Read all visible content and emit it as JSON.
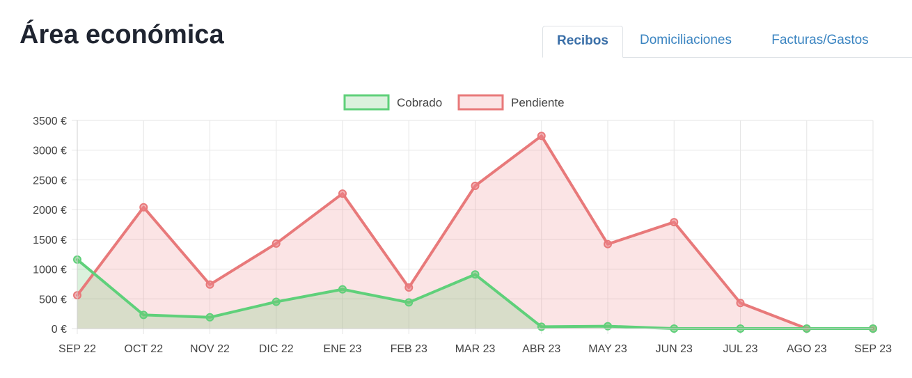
{
  "page": {
    "title": "Área económica"
  },
  "tabs": [
    {
      "label": "Recibos",
      "active": true
    },
    {
      "label": "Domiciliaciones",
      "active": false
    },
    {
      "label": "Facturas/Gastos",
      "active": false
    }
  ],
  "colors": {
    "cobrado_line": "#5fd07a",
    "cobrado_fill": "rgba(110,200,120,0.25)",
    "pendiente_line": "#e8797a",
    "pendiente_fill": "rgba(235,130,135,0.22)",
    "grid": "#e6e6e6",
    "tick_text": "#444444",
    "active_tab": "#3a6fa8",
    "tab_link": "#3a84c1"
  },
  "chart_data": {
    "type": "line",
    "x": [
      "SEP 22",
      "OCT 22",
      "NOV 22",
      "DIC 22",
      "ENE 23",
      "FEB 23",
      "MAR 23",
      "ABR 23",
      "MAY 23",
      "JUN 23",
      "JUL 23",
      "AGO 23",
      "SEP 23"
    ],
    "series": [
      {
        "name": "Cobrado",
        "values": [
          1160,
          230,
          190,
          450,
          660,
          440,
          910,
          30,
          40,
          0,
          0,
          0,
          0
        ]
      },
      {
        "name": "Pendiente",
        "values": [
          560,
          2040,
          740,
          1430,
          2270,
          690,
          2400,
          3240,
          1420,
          1790,
          430,
          0,
          0
        ]
      }
    ],
    "ylim": [
      0,
      3500
    ],
    "y_ticks": [
      "0 €",
      "500 €",
      "1000 €",
      "1500 €",
      "2000 €",
      "2500 €",
      "3000 €",
      "3500 €"
    ],
    "y_tick_values": [
      0,
      500,
      1000,
      1500,
      2000,
      2500,
      3000,
      3500
    ],
    "area_fill": true,
    "grid": true,
    "legend_position": "top-center"
  }
}
